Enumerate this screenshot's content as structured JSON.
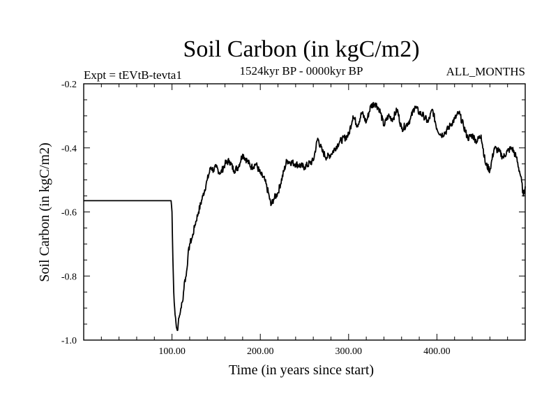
{
  "chart_data": {
    "type": "line",
    "title": "Soil Carbon (in kgC/m2)",
    "subtitle_left": "Expt = tEVtB-tevta1",
    "subtitle_center": "1524kyr BP - 0000kyr BP",
    "subtitle_right": "ALL_MONTHS",
    "xlabel": "Time (in years since start)",
    "ylabel": "Soil Carbon (in kgC/m2)",
    "xlim": [
      0,
      500
    ],
    "ylim": [
      -1.0,
      -0.2
    ],
    "x_ticks": [
      100,
      200,
      300,
      400
    ],
    "x_tick_labels": [
      "100.00",
      "200.00",
      "300.00",
      "400.00"
    ],
    "y_ticks": [
      -1.0,
      -0.8,
      -0.6,
      -0.4,
      -0.2
    ],
    "y_tick_labels": [
      "-1.0",
      "-0.8",
      "-0.6",
      "-0.4",
      "-0.2"
    ],
    "x_minor_step": 20,
    "y_minor_step": 0.05,
    "series": [
      {
        "name": "Soil Carbon",
        "x": [
          0,
          99,
          100,
          101,
          102,
          103,
          104,
          105,
          106,
          107,
          108,
          109,
          110,
          112,
          114,
          116,
          118,
          120,
          123,
          126,
          130,
          135,
          140,
          144,
          147,
          150,
          155,
          160,
          165,
          170,
          175,
          180,
          185,
          190,
          195,
          200,
          205,
          210,
          212,
          215,
          220,
          230,
          240,
          250,
          260,
          265,
          270,
          275,
          280,
          290,
          300,
          305,
          310,
          315,
          320,
          325,
          330,
          335,
          340,
          345,
          350,
          355,
          360,
          365,
          370,
          375,
          380,
          385,
          390,
          395,
          400,
          405,
          410,
          415,
          420,
          425,
          430,
          435,
          440,
          445,
          450,
          455,
          460,
          465,
          470,
          475,
          480,
          485,
          490,
          495,
          498,
          500
        ],
        "y": [
          -0.565,
          -0.565,
          -0.6,
          -0.75,
          -0.85,
          -0.9,
          -0.93,
          -0.96,
          -0.97,
          -0.95,
          -0.93,
          -0.92,
          -0.9,
          -0.88,
          -0.82,
          -0.8,
          -0.74,
          -0.7,
          -0.68,
          -0.64,
          -0.6,
          -0.55,
          -0.5,
          -0.46,
          -0.47,
          -0.46,
          -0.48,
          -0.45,
          -0.44,
          -0.47,
          -0.46,
          -0.42,
          -0.44,
          -0.46,
          -0.45,
          -0.48,
          -0.5,
          -0.55,
          -0.58,
          -0.56,
          -0.54,
          -0.44,
          -0.45,
          -0.46,
          -0.44,
          -0.37,
          -0.41,
          -0.43,
          -0.42,
          -0.38,
          -0.36,
          -0.3,
          -0.33,
          -0.29,
          -0.32,
          -0.27,
          -0.26,
          -0.28,
          -0.33,
          -0.3,
          -0.31,
          -0.28,
          -0.34,
          -0.33,
          -0.31,
          -0.27,
          -0.29,
          -0.3,
          -0.32,
          -0.28,
          -0.34,
          -0.36,
          -0.35,
          -0.33,
          -0.31,
          -0.29,
          -0.33,
          -0.37,
          -0.36,
          -0.38,
          -0.36,
          -0.45,
          -0.47,
          -0.4,
          -0.41,
          -0.43,
          -0.41,
          -0.4,
          -0.43,
          -0.49,
          -0.55,
          -0.52
        ]
      }
    ]
  }
}
